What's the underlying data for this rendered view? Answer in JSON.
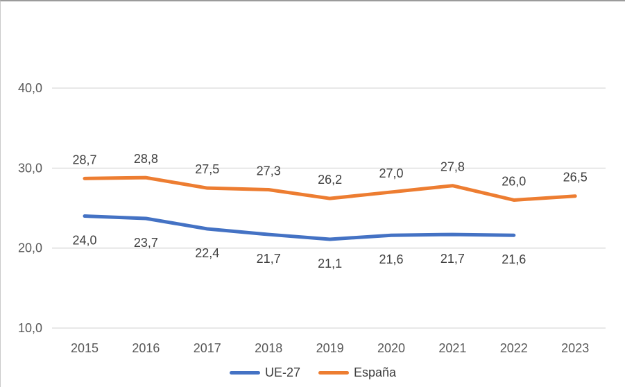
{
  "chart_data": {
    "type": "line",
    "title": "",
    "xlabel": "",
    "ylabel": "",
    "categories": [
      "2015",
      "2016",
      "2017",
      "2018",
      "2019",
      "2020",
      "2021",
      "2022",
      "2023"
    ],
    "y_axis": {
      "ticks": [
        {
          "value": 40,
          "label": "40,0"
        },
        {
          "value": 30,
          "label": "30,0"
        },
        {
          "value": 20,
          "label": "20,0"
        },
        {
          "value": 10,
          "label": "10,0"
        }
      ],
      "ylim": [
        10,
        45
      ]
    },
    "grid": true,
    "legend_position": "bottom",
    "series": [
      {
        "name": "UE-27",
        "color": "#4472C4",
        "label_position": "below",
        "values": [
          24.0,
          23.7,
          22.4,
          21.7,
          21.1,
          21.6,
          21.7,
          21.6,
          null
        ],
        "labels": [
          "24,0",
          "23,7",
          "22,4",
          "21,7",
          "21,1",
          "21,6",
          "21,7",
          "21,6",
          ""
        ]
      },
      {
        "name": "España",
        "color": "#ED7D31",
        "label_position": "above",
        "values": [
          28.7,
          28.8,
          27.5,
          27.3,
          26.2,
          27.0,
          27.8,
          26.0,
          26.5
        ],
        "labels": [
          "28,7",
          "28,8",
          "27,5",
          "27,3",
          "26,2",
          "27,0",
          "27,8",
          "26,0",
          "26,5"
        ]
      }
    ]
  },
  "colors": {
    "gridline": "#d9d9d9",
    "axis_text": "#595959",
    "label_text": "#404040"
  }
}
